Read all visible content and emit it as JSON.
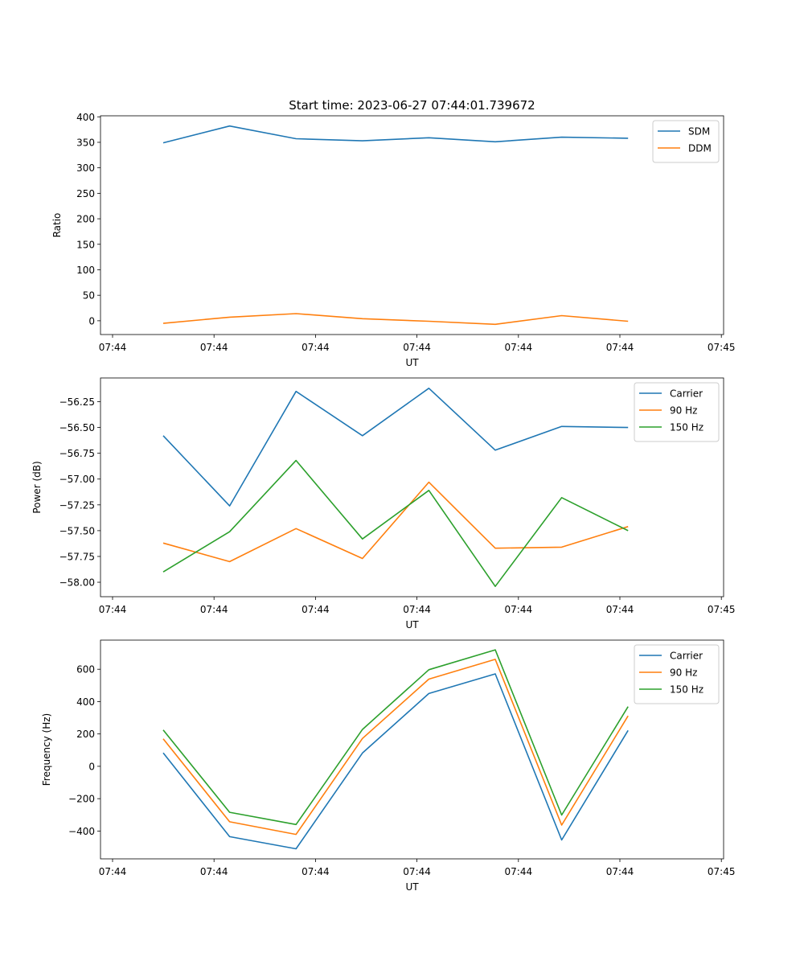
{
  "figure": {
    "title": "Start time: 2023-06-27 07:44:01.739672"
  },
  "chart_data": [
    {
      "type": "line",
      "title": "Start time: 2023-06-27 07:44:01.739672",
      "xlabel": "UT",
      "ylabel": "Ratio",
      "x_tick_labels": [
        "07:44",
        "07:44",
        "07:44",
        "07:44",
        "07:44",
        "07:44",
        "07:45"
      ],
      "x_points": 8,
      "ylim": [
        -27,
        402
      ],
      "yticks": [
        0,
        50,
        100,
        150,
        200,
        250,
        300,
        350,
        400
      ],
      "y_tick_labels": [
        "0",
        "50",
        "100",
        "150",
        "200",
        "250",
        "300",
        "350",
        "400"
      ],
      "legend_position": "top-right",
      "series": [
        {
          "name": "SDM",
          "color": "#1f77b4",
          "values": [
            349,
            382,
            357,
            353,
            359,
            351,
            360,
            358
          ]
        },
        {
          "name": "DDM",
          "color": "#ff7f0e",
          "values": [
            -5,
            7,
            14,
            4,
            -1,
            -7,
            10,
            -1
          ]
        }
      ]
    },
    {
      "type": "line",
      "title": "",
      "xlabel": "UT",
      "ylabel": "Power (dB)",
      "x_tick_labels": [
        "07:44",
        "07:44",
        "07:44",
        "07:44",
        "07:44",
        "07:44",
        "07:45"
      ],
      "x_points": 8,
      "ylim": [
        -58.14,
        -56.02
      ],
      "yticks": [
        -58.0,
        -57.75,
        -57.5,
        -57.25,
        -57.0,
        -56.75,
        -56.5,
        -56.25
      ],
      "y_tick_labels": [
        "−58.00",
        "−57.75",
        "−57.50",
        "−57.25",
        "−57.00",
        "−56.75",
        "−56.50",
        "−56.25"
      ],
      "legend_position": "top-right",
      "series": [
        {
          "name": "Carrier",
          "color": "#1f77b4",
          "values": [
            -56.58,
            -57.26,
            -56.15,
            -56.58,
            -56.12,
            -56.72,
            -56.49,
            -56.5
          ]
        },
        {
          "name": "90 Hz",
          "color": "#ff7f0e",
          "values": [
            -57.62,
            -57.8,
            -57.48,
            -57.77,
            -57.03,
            -57.67,
            -57.66,
            -57.46
          ]
        },
        {
          "name": "150 Hz",
          "color": "#2ca02c",
          "values": [
            -57.9,
            -57.51,
            -56.82,
            -57.58,
            -57.11,
            -58.04,
            -57.18,
            -57.5
          ]
        }
      ]
    },
    {
      "type": "line",
      "title": "",
      "xlabel": "UT",
      "ylabel": "Frequency (Hz)",
      "x_tick_labels": [
        "07:44",
        "07:44",
        "07:44",
        "07:44",
        "07:44",
        "07:44",
        "07:45"
      ],
      "x_points": 8,
      "ylim": [
        -572,
        780
      ],
      "yticks": [
        -400,
        -200,
        0,
        200,
        400,
        600
      ],
      "y_tick_labels": [
        "−400",
        "−200",
        "0",
        "200",
        "400",
        "600"
      ],
      "legend_position": "top-right",
      "series": [
        {
          "name": "Carrier",
          "color": "#1f77b4",
          "values": [
            83,
            -435,
            -510,
            82,
            450,
            571,
            -455,
            222
          ]
        },
        {
          "name": "90 Hz",
          "color": "#ff7f0e",
          "values": [
            170,
            -343,
            -421,
            172,
            539,
            661,
            -363,
            312
          ]
        },
        {
          "name": "150 Hz",
          "color": "#2ca02c",
          "values": [
            225,
            -284,
            -360,
            228,
            597,
            720,
            -301,
            369
          ]
        }
      ]
    }
  ]
}
